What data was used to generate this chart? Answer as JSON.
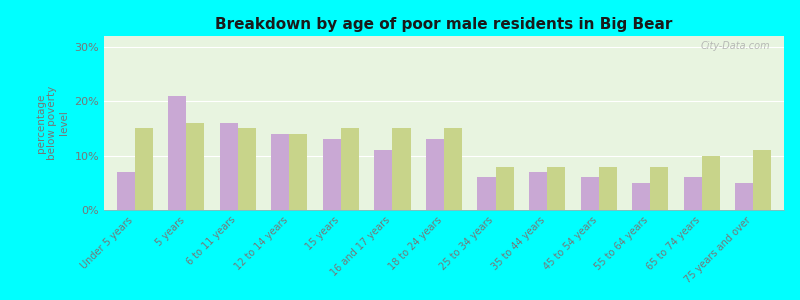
{
  "title": "Breakdown by age of poor male residents in Big Bear",
  "ylabel": "percentage\nbelow poverty\nlevel",
  "categories": [
    "Under 5 years",
    "5 years",
    "6 to 11 years",
    "12 to 14 years",
    "15 years",
    "16 and 17 years",
    "18 to 24 years",
    "25 to 34 years",
    "35 to 44 years",
    "45 to 54 years",
    "55 to 64 years",
    "65 to 74 years",
    "75 years and over"
  ],
  "big_bear": [
    7,
    21,
    16,
    14,
    13,
    11,
    13,
    6,
    7,
    6,
    5,
    6,
    5
  ],
  "california": [
    15,
    16,
    15,
    14,
    15,
    15,
    15,
    8,
    8,
    8,
    8,
    10,
    11
  ],
  "ylim": [
    0,
    32
  ],
  "yticks": [
    0,
    10,
    20,
    30
  ],
  "ytick_labels": [
    "0%",
    "10%",
    "20%",
    "30%"
  ],
  "big_bear_color": "#c9a8d4",
  "california_color": "#c8d48a",
  "bg_color_top": "#e8f4e0",
  "bg_color_bottom": "#d0e8b8",
  "outer_bg": "#00ffff",
  "title_color": "#1a1a1a",
  "bar_width": 0.35,
  "watermark": "City-Data.com",
  "axis_text_color": "#777777",
  "legend_text_color": "#333333"
}
